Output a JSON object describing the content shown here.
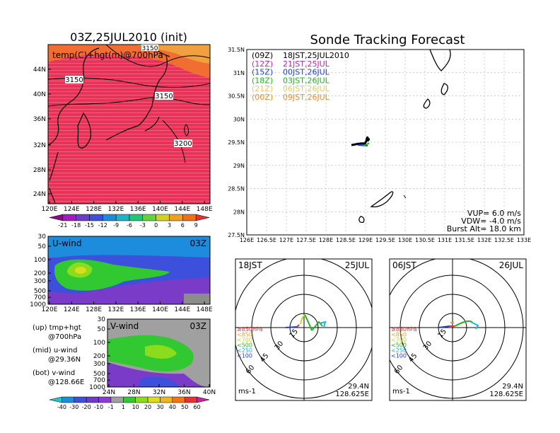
{
  "left": {
    "title": "03Z,25JUL2010 (init)",
    "map_label": "temp(C)+hgt(m)@700hPa",
    "contour_labels": [
      "3150",
      "3150",
      "3150",
      "3200"
    ],
    "lat_ticks": [
      "44N",
      "40N",
      "36N",
      "32N",
      "28N",
      "24N"
    ],
    "lon_ticks": [
      "120E",
      "124E",
      "128E",
      "132E",
      "136E",
      "140E",
      "144E",
      "148E"
    ],
    "temp_colorbar": [
      "-21",
      "-18",
      "-15",
      "-12",
      "-9",
      "-6",
      "-3",
      "0",
      "3",
      "6",
      "9"
    ],
    "temp_colors": [
      "#8c0a8c",
      "#a01ebe",
      "#6e3cc8",
      "#3c50dc",
      "#1e8cdc",
      "#1eb4c8",
      "#1ec878",
      "#64d23c",
      "#d2d21e",
      "#f0a01e",
      "#f06e14",
      "#e63232"
    ],
    "u_panel": {
      "label": "U-wind",
      "time": "03Z",
      "p_ticks": [
        "30",
        "50",
        "100",
        "200",
        "300",
        "500",
        "700",
        "1000"
      ],
      "lon_ticks": [
        "120E",
        "124E",
        "128E",
        "132E",
        "136E",
        "140E",
        "144E",
        "148E"
      ]
    },
    "v_panel": {
      "label": "V-wind",
      "time": "03Z",
      "p_ticks": [
        "30",
        "50",
        "100",
        "200",
        "300",
        "500",
        "700",
        "1000"
      ],
      "lat_ticks": [
        "24N",
        "28N",
        "32N",
        "36N",
        "40N"
      ]
    },
    "legend_lines": [
      [
        "(up) tmp+hgt",
        "@700hPa"
      ],
      [
        "(mid) u-wind",
        "@29.36N"
      ],
      [
        "(bot) v-wind",
        "@128.66E"
      ]
    ],
    "wind_colorbar": [
      "-40",
      "-30",
      "-20",
      "-10",
      "-1",
      "1",
      "10",
      "20",
      "30",
      "40",
      "50",
      "60"
    ],
    "wind_colors": [
      "#1ec8c8",
      "#1e8cdc",
      "#3c50dc",
      "#6e3cc8",
      "#8c3cd2",
      "#a0a0a0",
      "#32c832",
      "#8cdc1e",
      "#dcdc1e",
      "#f0b41e",
      "#f07814",
      "#e63232",
      "#d21ea0"
    ]
  },
  "right": {
    "title": "Sonde Tracking Forecast",
    "launches": [
      {
        "utc": "(09Z)",
        "local": "18JST,25JUL2010",
        "color": "#000000"
      },
      {
        "utc": "(12Z)",
        "local": "21JST,25JUL",
        "color": "#c81ec8"
      },
      {
        "utc": "(15Z)",
        "local": "00JST,26JUL",
        "color": "#1e3cdc"
      },
      {
        "utc": "(18Z)",
        "local": "03JST,26JUL",
        "color": "#1eb41e"
      },
      {
        "utc": "(21Z)",
        "local": "06JST,26JUL",
        "color": "#e6c864"
      },
      {
        "utc": "(00Z)",
        "local": "09JST,26JUL",
        "color": "#f08c28"
      }
    ],
    "lat_ticks": [
      "31.5N",
      "31N",
      "30.5N",
      "30N",
      "29.5N",
      "29N",
      "28.5N",
      "28N",
      "27.5N"
    ],
    "lon_ticks": [
      "126E",
      "126.5E",
      "127E",
      "127.5E",
      "128E",
      "128.5E",
      "129E",
      "129.5E",
      "130E",
      "130.5E",
      "131E",
      "131.5E",
      "132E",
      "132.5E",
      "133E"
    ],
    "vup": "VUP= 6.0 m/s",
    "vdw": "VDW= -4.0 m/s",
    "burst": "Burst Alt= 18.0 km"
  },
  "hodographs": [
    {
      "time": "18JST",
      "date": "25JUL",
      "rings": [
        "15",
        "30",
        "45",
        "60"
      ],
      "levels": [
        "≥850hPa",
        "<850",
        "<700",
        "<500",
        "<250",
        "<100"
      ],
      "level_colors": [
        "#e63232",
        "#f0a01e",
        "#d2d21e",
        "#1eb41e",
        "#1eb4dc",
        "#1e3cdc"
      ],
      "unit": "ms-1",
      "lat": "29.4N",
      "lon": "128.625E"
    },
    {
      "time": "06JST",
      "date": "26JUL",
      "rings": [
        "15",
        "30",
        "45",
        "60"
      ],
      "levels": [
        "≥850hPa",
        "<850",
        "<700",
        "<500",
        "<250",
        "<100"
      ],
      "level_colors": [
        "#e63232",
        "#f0a01e",
        "#d2d21e",
        "#1eb41e",
        "#1eb4dc",
        "#1e3cdc"
      ],
      "unit": "ms-1",
      "lat": "29.4N",
      "lon": "128.625E"
    }
  ],
  "chart_data": [
    {
      "type": "heatmap",
      "title": "03Z,25JUL2010 (init)",
      "field": "temp(C)+hgt(m)@700hPa",
      "xlim": [
        "120E",
        "149E"
      ],
      "ylim": [
        "22N",
        "47N"
      ],
      "contours": [
        3150,
        3200
      ]
    },
    {
      "type": "heatmap",
      "title": "U-wind 03Z",
      "x": "longitude",
      "y": "pressure (hPa)",
      "xlim": [
        "120E",
        "149E"
      ],
      "ylim": [
        1000,
        30
      ]
    },
    {
      "type": "heatmap",
      "title": "V-wind 03Z",
      "x": "latitude",
      "y": "pressure (hPa)",
      "xlim": [
        "24N",
        "40N"
      ],
      "ylim": [
        1000,
        30
      ]
    },
    {
      "type": "line",
      "title": "Sonde Tracking Forecast",
      "xlim": [
        126,
        133
      ],
      "ylim": [
        27.5,
        31.5
      ],
      "launch_point": [
        128.62,
        29.42
      ]
    },
    {
      "type": "scatter",
      "title": "Hodograph 18JST 25JUL",
      "rings_ms": [
        15,
        30,
        45,
        60
      ]
    },
    {
      "type": "scatter",
      "title": "Hodograph 06JST 26JUL",
      "rings_ms": [
        15,
        30,
        45,
        60
      ]
    }
  ]
}
